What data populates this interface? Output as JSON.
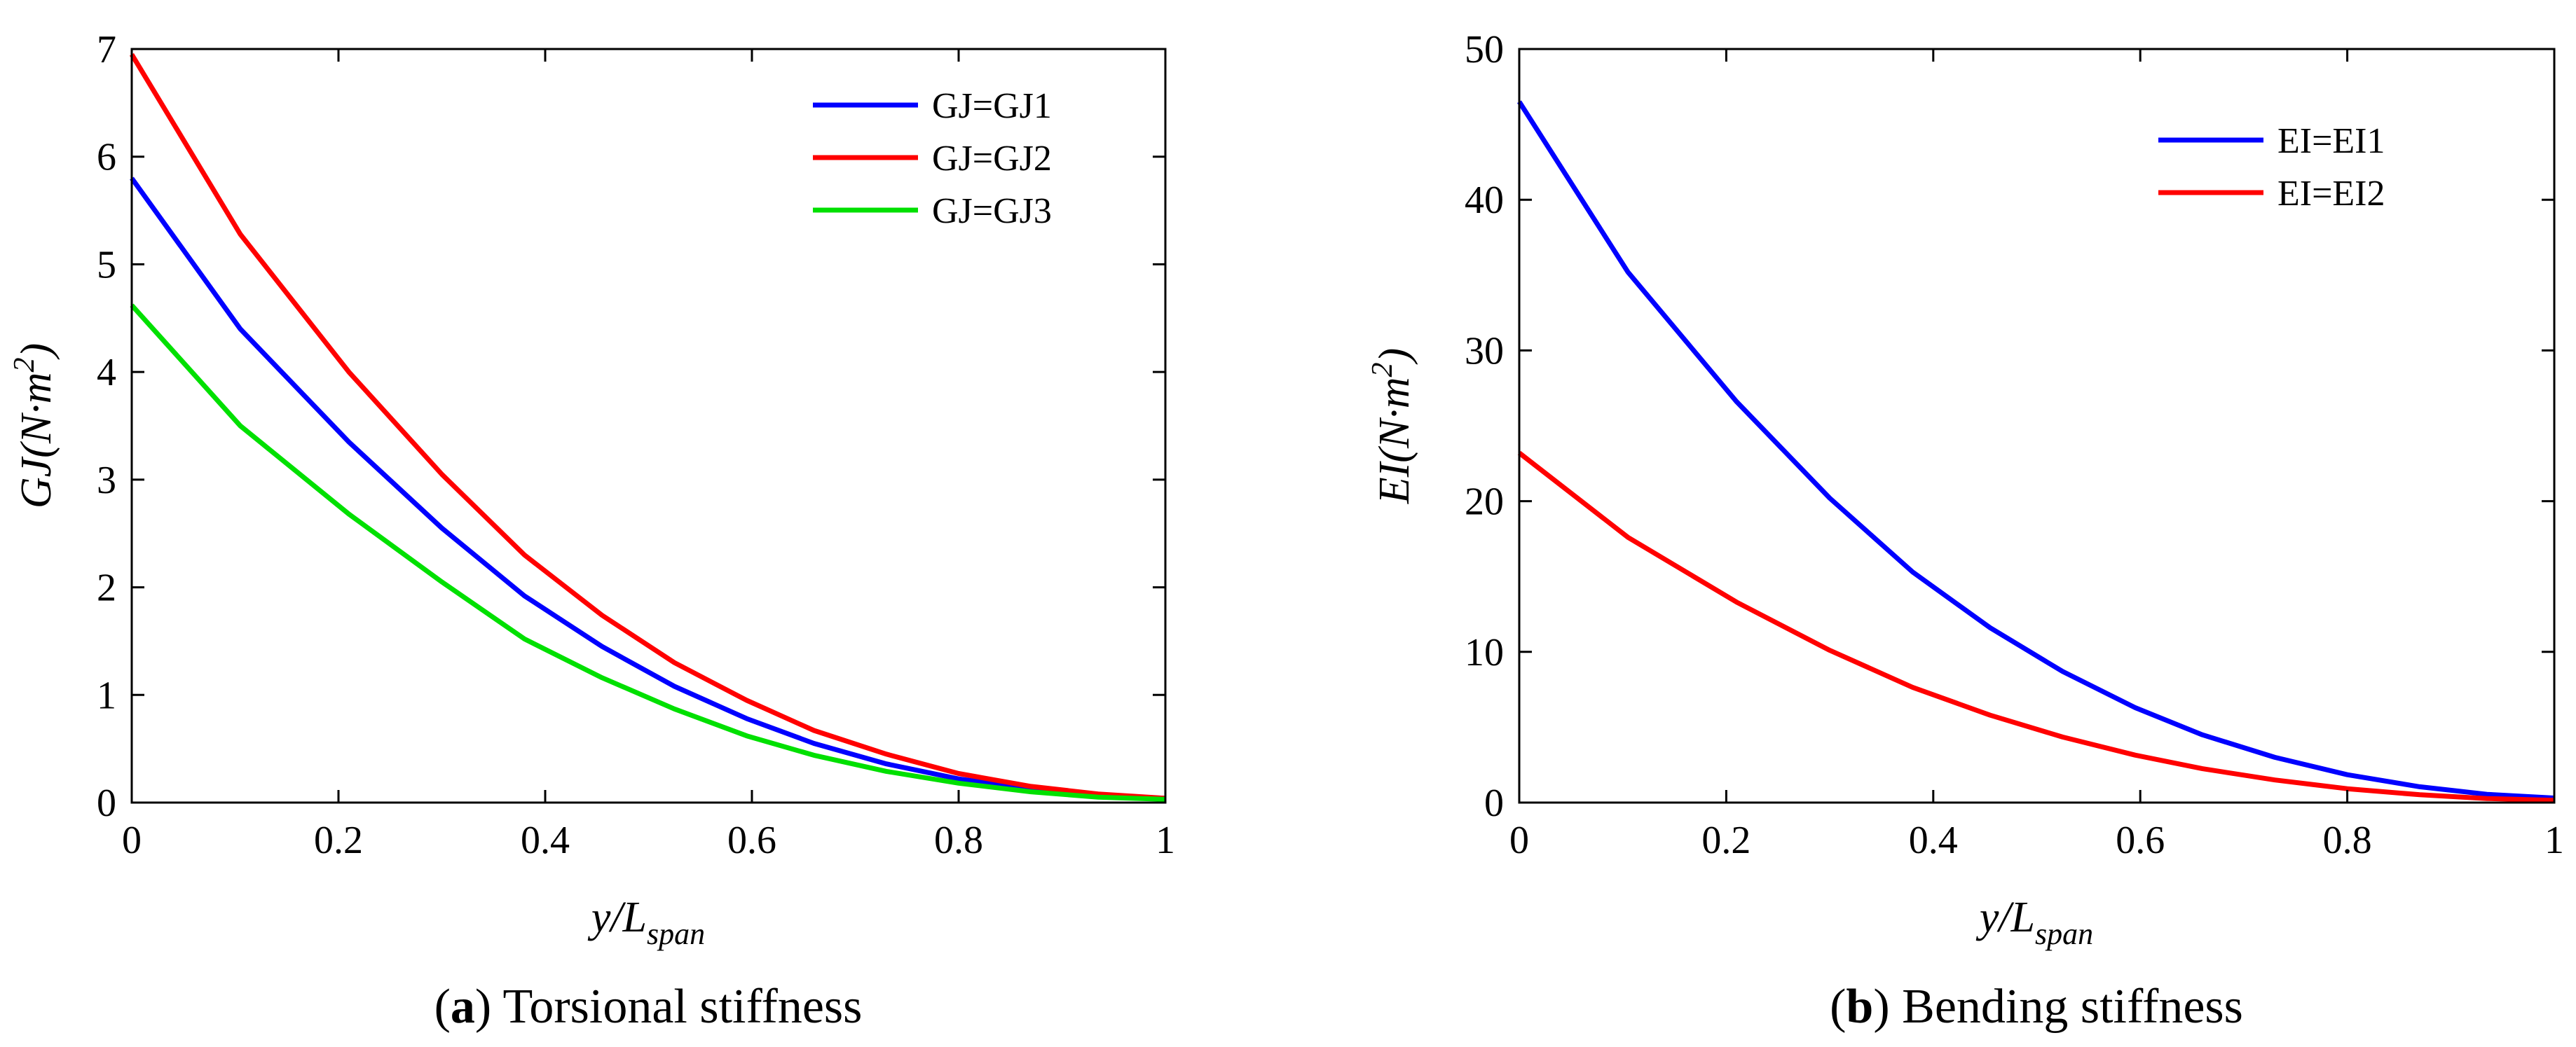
{
  "chart_data": [
    {
      "type": "line",
      "caption_letter": "a",
      "caption_text": "Torsional stiffness",
      "xlabel_main": "y/L",
      "xlabel_sub": "span",
      "ylabel_main": "GJ(N·m",
      "ylabel_sup": "2",
      "ylabel_close": ")",
      "xlim": [
        0,
        1
      ],
      "ylim": [
        0,
        7
      ],
      "xticks": [
        0,
        0.2,
        0.4,
        0.6,
        0.8,
        1
      ],
      "xtick_labels": [
        "0",
        "0.2",
        "0.4",
        "0.6",
        "0.8",
        "1"
      ],
      "yticks": [
        0,
        1,
        2,
        3,
        4,
        5,
        6,
        7
      ],
      "ytick_labels": [
        "0",
        "1",
        "2",
        "3",
        "4",
        "5",
        "6",
        "7"
      ],
      "legend_position": "top-right",
      "x": [
        0,
        0.105,
        0.21,
        0.3,
        0.38,
        0.455,
        0.525,
        0.595,
        0.66,
        0.73,
        0.8,
        0.87,
        0.935,
        1.0
      ],
      "series": [
        {
          "name": "GJ=GJ1",
          "color": "#0000ff",
          "values": [
            5.8,
            4.4,
            3.35,
            2.55,
            1.92,
            1.45,
            1.08,
            0.78,
            0.55,
            0.36,
            0.22,
            0.13,
            0.07,
            0.04
          ]
        },
        {
          "name": "GJ=GJ2",
          "color": "#ff0000",
          "values": [
            6.95,
            5.28,
            4.0,
            3.05,
            2.3,
            1.74,
            1.3,
            0.95,
            0.67,
            0.45,
            0.27,
            0.15,
            0.08,
            0.04
          ]
        },
        {
          "name": "GJ=GJ3",
          "color": "#00e000",
          "values": [
            4.62,
            3.5,
            2.68,
            2.05,
            1.52,
            1.16,
            0.87,
            0.62,
            0.44,
            0.29,
            0.18,
            0.1,
            0.05,
            0.03
          ]
        }
      ]
    },
    {
      "type": "line",
      "caption_letter": "b",
      "caption_text": "Bending stiffness",
      "xlabel_main": "y/L",
      "xlabel_sub": "span",
      "ylabel_main": "EI(N·m",
      "ylabel_sup": "2",
      "ylabel_close": ")",
      "xlim": [
        0,
        1
      ],
      "ylim": [
        0,
        50
      ],
      "xticks": [
        0,
        0.2,
        0.4,
        0.6,
        0.8,
        1
      ],
      "xtick_labels": [
        "0",
        "0.2",
        "0.4",
        "0.6",
        "0.8",
        "1"
      ],
      "yticks": [
        0,
        10,
        20,
        30,
        40,
        50
      ],
      "ytick_labels": [
        "0",
        "10",
        "20",
        "30",
        "40",
        "50"
      ],
      "legend_position": "top-right",
      "x": [
        0,
        0.105,
        0.21,
        0.3,
        0.38,
        0.455,
        0.525,
        0.595,
        0.66,
        0.73,
        0.8,
        0.87,
        0.935,
        1.0
      ],
      "series": [
        {
          "name": "EI=EI1",
          "color": "#0000ff",
          "values": [
            46.5,
            35.2,
            26.6,
            20.2,
            15.3,
            11.6,
            8.7,
            6.3,
            4.5,
            3.0,
            1.85,
            1.05,
            0.55,
            0.3
          ]
        },
        {
          "name": "EI=EI2",
          "color": "#ff0000",
          "values": [
            23.2,
            17.6,
            13.3,
            10.1,
            7.65,
            5.8,
            4.35,
            3.15,
            2.25,
            1.5,
            0.92,
            0.52,
            0.27,
            0.15
          ]
        }
      ]
    }
  ]
}
